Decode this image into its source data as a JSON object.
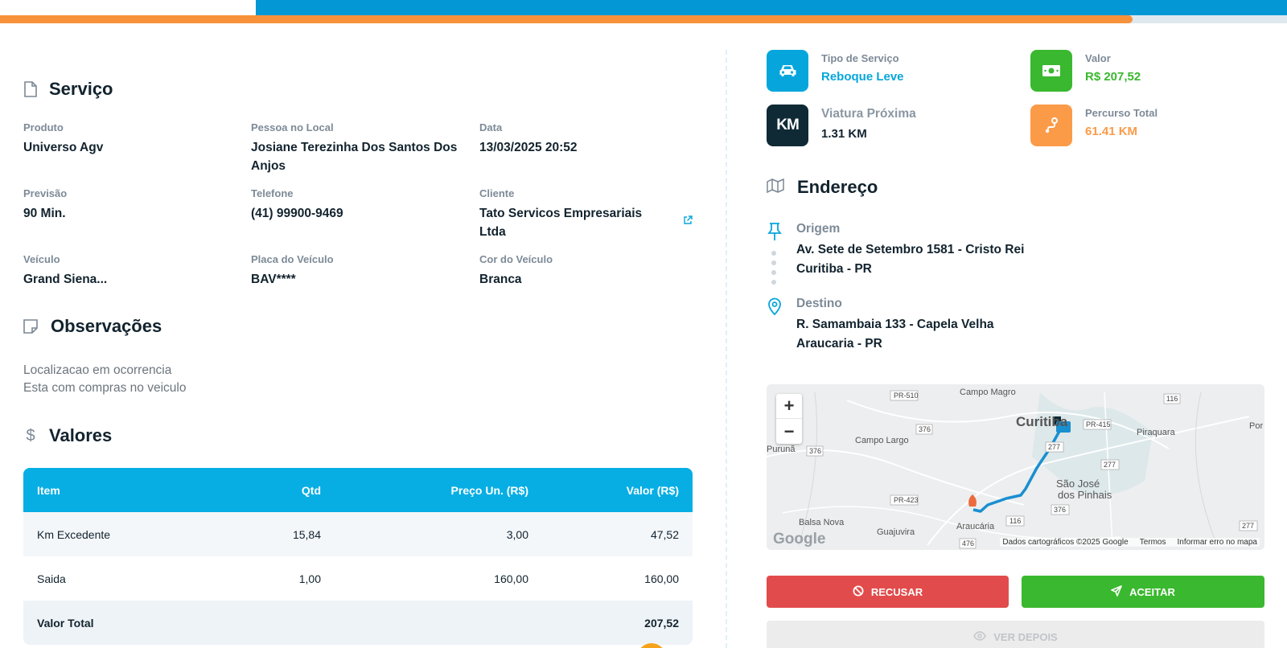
{
  "top": {
    "progress_percent": 88
  },
  "service": {
    "title": "Serviço",
    "fields": [
      {
        "label": "Produto",
        "value": "Universo Agv"
      },
      {
        "label": "Pessoa no Local",
        "value": "Josiane Terezinha Dos Santos Dos Anjos"
      },
      {
        "label": "Data",
        "value": "13/03/2025 20:52"
      },
      {
        "label": "Previsão",
        "value": "90 Min."
      },
      {
        "label": "Telefone",
        "value": "(41) 99900-9469"
      },
      {
        "label": "Cliente",
        "value": "Tato Servicos Empresariais Ltda"
      },
      {
        "label": "Veículo",
        "value": "Grand Siena..."
      },
      {
        "label": "Placa do Veículo",
        "value": "BAV****"
      },
      {
        "label": "Cor do Veículo",
        "value": "Branca"
      }
    ]
  },
  "observations": {
    "title": "Observações",
    "lines": [
      "Localizacao em ocorrencia",
      "Esta com compras no veiculo"
    ]
  },
  "values": {
    "title": "Valores",
    "headers": [
      "Item",
      "Qtd",
      "Preço Un. (R$)",
      "Valor (R$)"
    ],
    "rows": [
      [
        "Km Excedente",
        "15,84",
        "3,00",
        "47,52"
      ],
      [
        "Saida",
        "1,00",
        "160,00",
        "160,00"
      ]
    ],
    "total_label": "Valor Total",
    "total_value": "207,52"
  },
  "stats": {
    "service_type": {
      "label": "Tipo de Serviço",
      "value": "Reboque Leve",
      "color": "#06a6dc",
      "icon": "car-icon"
    },
    "amount": {
      "label": "Valor",
      "value": "R$ 207,52",
      "color": "#3ab82f",
      "icon": "money-icon"
    },
    "nearest": {
      "label": "Viatura Próxima",
      "value": "1.31 KM",
      "tile_text": "KM",
      "color": "#0f2a35",
      "icon": "km-icon"
    },
    "route": {
      "label": "Percurso Total",
      "value": "61.41 KM",
      "color": "#f7923b",
      "icon": "route-icon"
    }
  },
  "address": {
    "title": "Endereço",
    "origin": {
      "label": "Origem",
      "line1": "Av. Sete de Setembro 1581 - Cristo Rei",
      "line2": "Curitiba - PR"
    },
    "destination": {
      "label": "Destino",
      "line1": "R. Samambaia 133 - Capela Velha",
      "line2": "Araucaria - PR"
    }
  },
  "map": {
    "zoom_in": "+",
    "zoom_out": "−",
    "places": [
      "Campo Magro",
      "Curitiba",
      "Campo Largo",
      "Piraquara",
      "São José",
      "dos Pinhais",
      "Balsa Nova",
      "Guajuvira",
      "Araucária",
      "Purunã",
      "Por"
    ],
    "roads": [
      "PR-510",
      "116",
      "PR-415",
      "376",
      "277",
      "277",
      "PR-423",
      "116",
      "376",
      "476",
      "277",
      "376"
    ],
    "logo": "Google",
    "attribution": "Dados cartográficos ©2025 Google",
    "terms": "Termos",
    "report": "Informar erro no mapa"
  },
  "actions": {
    "refuse": "RECUSAR",
    "accept": "ACEITAR",
    "later": "VER DEPOIS"
  }
}
